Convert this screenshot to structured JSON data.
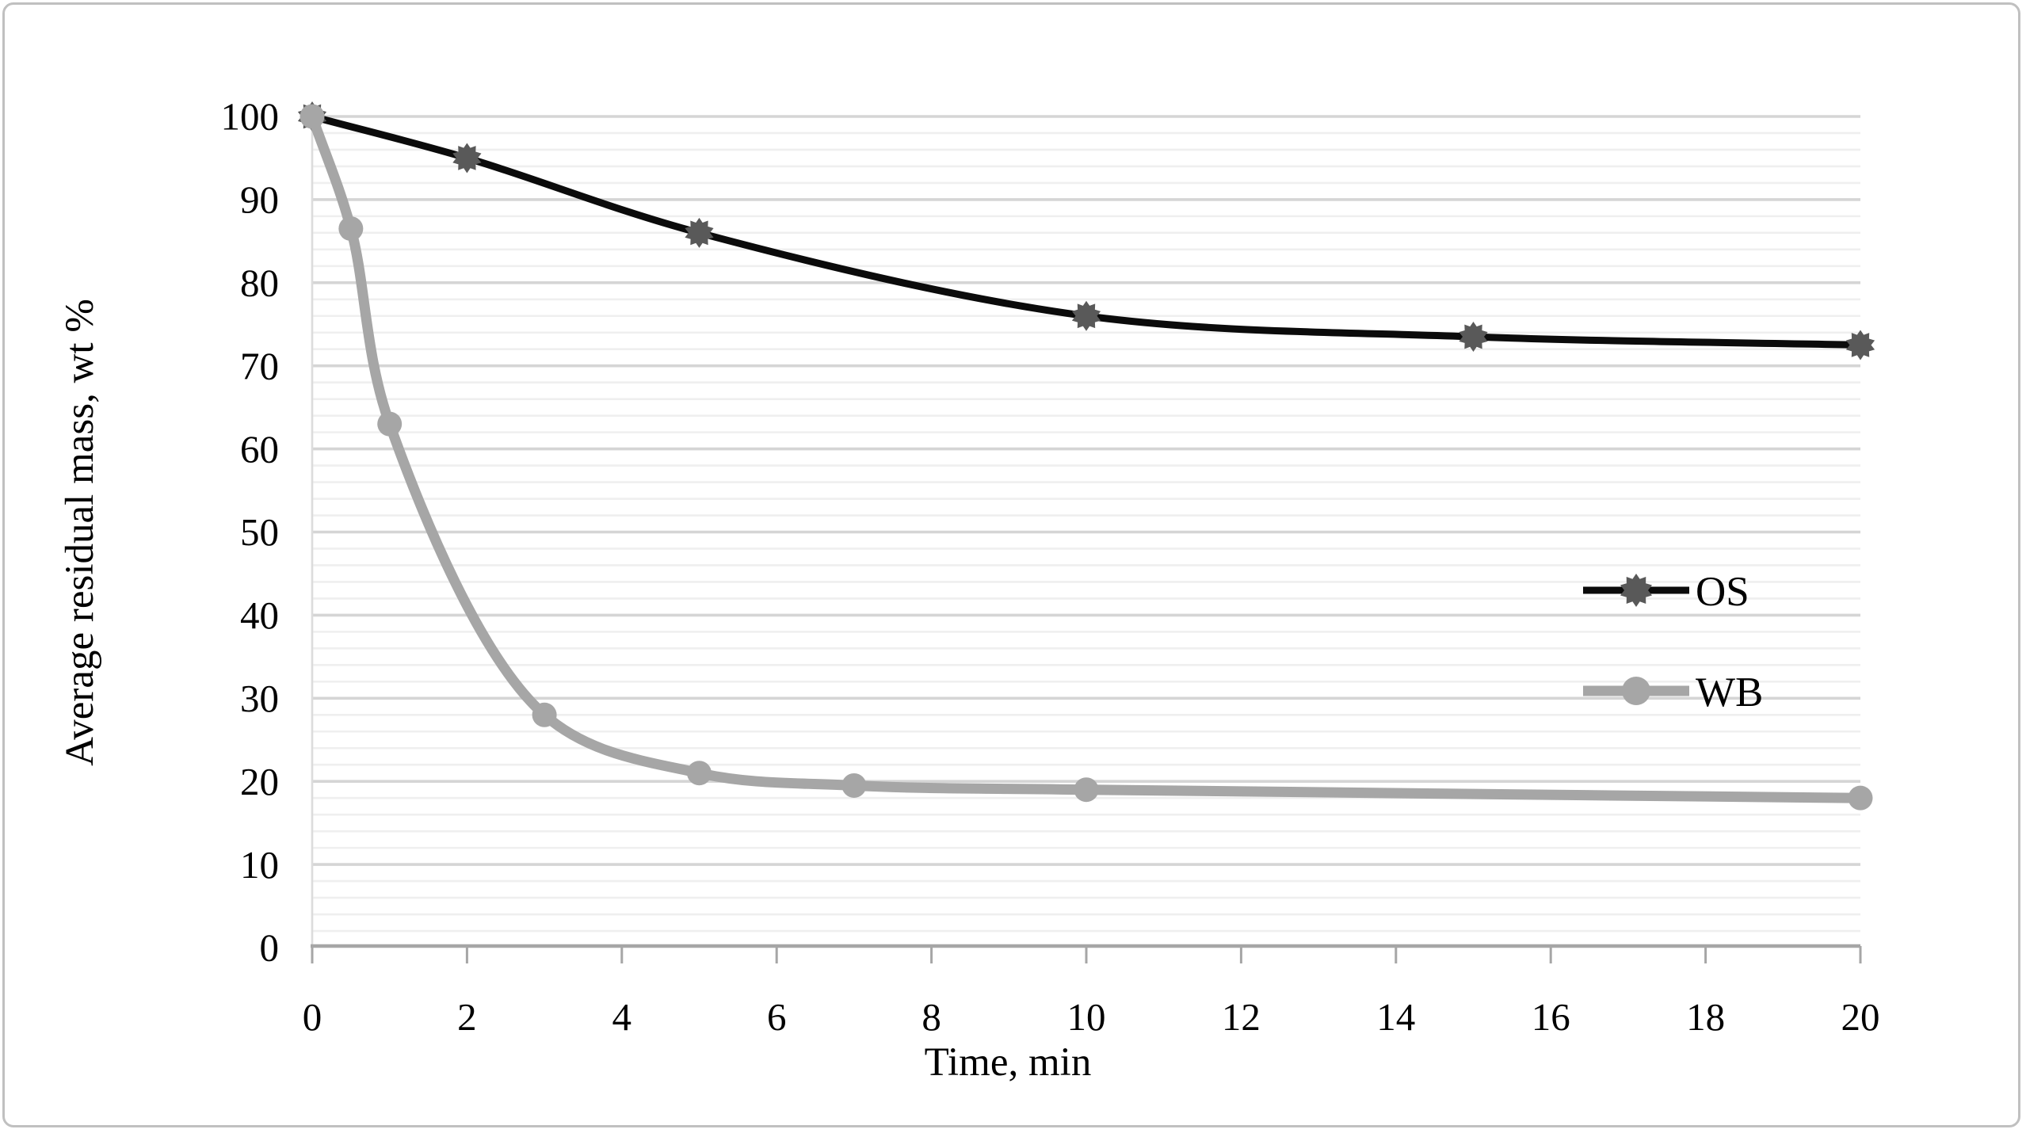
{
  "chart_data": {
    "type": "line",
    "title": "",
    "xlabel": "Time, min",
    "ylabel": "Average residual mass, wt %",
    "xlim": [
      0,
      20
    ],
    "ylim": [
      0,
      100
    ],
    "x_ticks": [
      0,
      2,
      4,
      6,
      8,
      10,
      12,
      14,
      16,
      18,
      20
    ],
    "y_ticks": [
      0,
      10,
      20,
      30,
      40,
      50,
      60,
      70,
      80,
      90,
      100
    ],
    "y_minor_step": 2,
    "grid": "horizontal major and minor gridlines, no vertical gridlines",
    "legend_position": "inside right, middle",
    "series": [
      {
        "name": "OS",
        "line_color": "#0b0b0b",
        "line_width": 9,
        "marker": "sun-star",
        "marker_color": "#595959",
        "points": [
          [
            0,
            100
          ],
          [
            2,
            95
          ],
          [
            5,
            86
          ],
          [
            10,
            76
          ],
          [
            15,
            73.5
          ],
          [
            20,
            72.5
          ]
        ]
      },
      {
        "name": "WB",
        "line_color": "#a6a6a6",
        "line_width": 13,
        "marker": "circle",
        "marker_color": "#a6a6a6",
        "points": [
          [
            0,
            100
          ],
          [
            0.5,
            86.5
          ],
          [
            1,
            63
          ],
          [
            3,
            28
          ],
          [
            5,
            21
          ],
          [
            7,
            19.5
          ],
          [
            10,
            19
          ],
          [
            20,
            18
          ]
        ]
      }
    ]
  },
  "colors": {
    "background": "#ffffff",
    "figure_border": "#c0c0c0",
    "major_gridline": "#d5d5d5",
    "minor_gridline": "#efefef",
    "axis_line": "#a6a6a6",
    "y_axis_line": "#dcdcdc",
    "tick_label": "#000000",
    "series_os": "#0b0b0b",
    "series_os_marker": "#595959",
    "series_wb": "#a6a6a6"
  }
}
